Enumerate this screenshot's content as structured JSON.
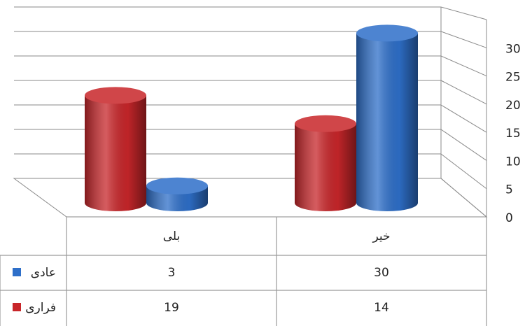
{
  "chart_data": {
    "type": "bar",
    "categories": [
      "بلی",
      "خیر"
    ],
    "series": [
      {
        "name": "عادی",
        "color": "#2e6fc9",
        "values": [
          3,
          30
        ]
      },
      {
        "name": "فراری",
        "color": "#c8262a",
        "values": [
          19,
          14
        ]
      }
    ],
    "ylim": [
      0,
      35
    ],
    "yticks": [
      0,
      5,
      10,
      15,
      20,
      25,
      30
    ],
    "grid": true,
    "data_table": true
  }
}
